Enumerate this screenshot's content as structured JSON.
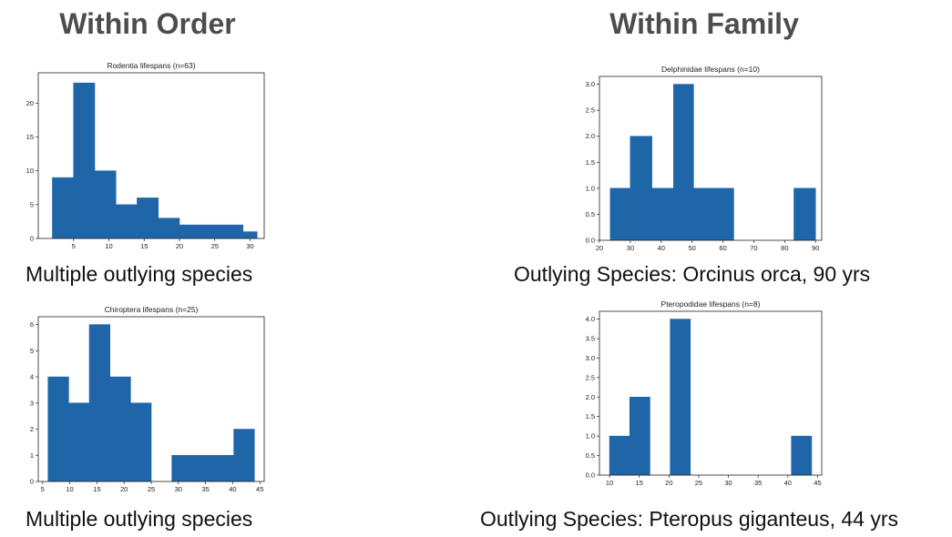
{
  "headings": {
    "left": "Within Order",
    "right": "Within Family"
  },
  "captions": [
    "Multiple outlying species",
    "Outlying Species: Orcinus orca, 90 yrs",
    "Multiple outlying species",
    "Outlying Species: Pteropus giganteus, 44 yrs"
  ],
  "colors": {
    "bar": "#1f66a8",
    "heading": "#4d4d4d"
  },
  "chart_data": [
    {
      "type": "bar",
      "title": "Rodentia lifespans (n=63)",
      "bins": [
        [
          2,
          5
        ],
        [
          5,
          8
        ],
        [
          8,
          11
        ],
        [
          11,
          14
        ],
        [
          14,
          17
        ],
        [
          17,
          20
        ],
        [
          20,
          23
        ],
        [
          23,
          26
        ],
        [
          26,
          29
        ],
        [
          29,
          31
        ]
      ],
      "values": [
        9,
        23,
        10,
        5,
        6,
        3,
        2,
        2,
        2,
        1
      ],
      "xlim": [
        0,
        32
      ],
      "ylim": [
        0,
        24.5
      ],
      "xticks": [
        5,
        10,
        15,
        20,
        25,
        30
      ],
      "yticks": [
        0,
        5,
        10,
        15,
        20
      ],
      "grid": false
    },
    {
      "type": "bar",
      "title": "Delphinidae lifespans (n=10)",
      "bins": [
        [
          23.5,
          30
        ],
        [
          30,
          37
        ],
        [
          37,
          44
        ],
        [
          44,
          50.5
        ],
        [
          50.5,
          57
        ],
        [
          57,
          63.5
        ],
        [
          63.5,
          70
        ],
        [
          70,
          76.5
        ],
        [
          76.5,
          83
        ],
        [
          83,
          90
        ]
      ],
      "values": [
        1,
        2,
        1,
        3,
        1,
        1,
        0,
        0,
        0,
        1
      ],
      "xlim": [
        20,
        92
      ],
      "ylim": [
        0,
        3.15
      ],
      "xticks": [
        20,
        30,
        40,
        50,
        60,
        70,
        80,
        90
      ],
      "yticks": [
        0.0,
        0.5,
        1.0,
        1.5,
        2.0,
        2.5,
        3.0
      ],
      "grid": false
    },
    {
      "type": "bar",
      "title": "Chiroptera lifespans (n=25)",
      "bins": [
        [
          6,
          9.8
        ],
        [
          9.8,
          13.6
        ],
        [
          13.6,
          17.4
        ],
        [
          17.4,
          21.2
        ],
        [
          21.2,
          25
        ],
        [
          25,
          28.8
        ],
        [
          28.8,
          32.6
        ],
        [
          32.6,
          36.4
        ],
        [
          36.4,
          40.2
        ],
        [
          40.2,
          44
        ]
      ],
      "values": [
        4,
        3,
        6,
        4,
        3,
        0,
        1,
        1,
        1,
        2
      ],
      "xlim": [
        4.2,
        45.8
      ],
      "ylim": [
        0,
        6.3
      ],
      "xticks": [
        5,
        10,
        15,
        20,
        25,
        30,
        35,
        40,
        45
      ],
      "yticks": [
        0,
        1,
        2,
        3,
        4,
        5,
        6
      ],
      "grid": false
    },
    {
      "type": "bar",
      "title": "Pteropodidae lifespans (n=8)",
      "bins": [
        [
          10,
          13.4
        ],
        [
          13.4,
          16.8
        ],
        [
          16.8,
          20.2
        ],
        [
          20.2,
          23.6
        ],
        [
          23.6,
          27
        ],
        [
          27,
          30.4
        ],
        [
          30.4,
          33.8
        ],
        [
          33.8,
          37.2
        ],
        [
          37.2,
          40.6
        ],
        [
          40.6,
          44
        ]
      ],
      "values": [
        1,
        2,
        0,
        4,
        0,
        0,
        0,
        0,
        0,
        1
      ],
      "xlim": [
        8.3,
        45.7
      ],
      "ylim": [
        0,
        4.2
      ],
      "xticks": [
        10,
        15,
        20,
        25,
        30,
        35,
        40,
        45
      ],
      "yticks": [
        0.0,
        0.5,
        1.0,
        1.5,
        2.0,
        2.5,
        3.0,
        3.5,
        4.0
      ],
      "grid": false
    }
  ]
}
